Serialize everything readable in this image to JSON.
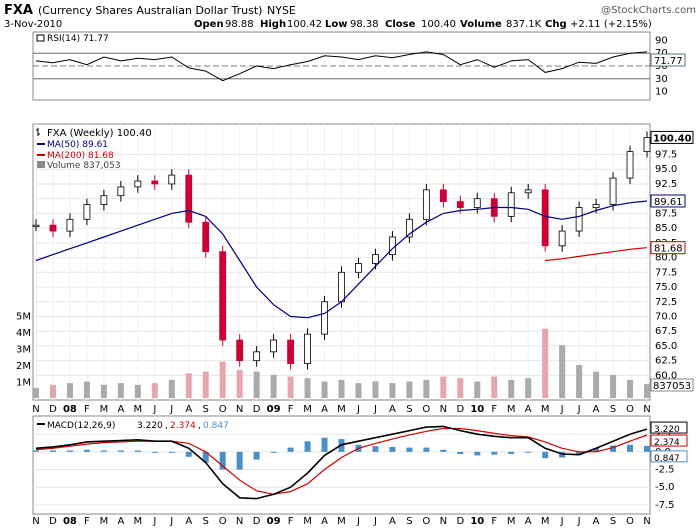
{
  "header": {
    "symbol": "FXA",
    "name": "(Currency Shares Australian Dollar Trust)",
    "exchange": "NYSE",
    "watermark": "@StockCharts.com",
    "date": "3-Nov-2010",
    "open_label": "Open",
    "open": "98.88",
    "high_label": "High",
    "high": "100.42",
    "low_label": "Low",
    "low": "98.38",
    "close_label": "Close",
    "close": "100.40",
    "volume_label": "Volume",
    "volume": "837.1K",
    "chg_label": "Chg",
    "chg": "+2.11 (+2.15%)"
  },
  "colors": {
    "up": "#000000",
    "down": "#cc0033",
    "ma50": "#000080",
    "ma200": "#cc0000",
    "vol_up": "#aaaaaa",
    "vol_down": "#e7a5ae",
    "rsi_fill_high": "#5a7a5a",
    "rsi_fill_low": "#7a5a5a",
    "macd": "#000000",
    "signal": "#cc0000",
    "hist": "#4a90c8"
  },
  "chart_data": [
    {
      "type": "line",
      "panel": "rsi",
      "legend": "RSI(14) 71.77",
      "current_label": "71.77",
      "ylim": [
        0,
        100
      ],
      "ticks": [
        "90",
        "70",
        "50",
        "30",
        "10"
      ],
      "reference_lines": [
        70,
        50,
        30
      ],
      "x": [
        "2007-11",
        "2007-12",
        "2008-01",
        "2008-02",
        "2008-03",
        "2008-04",
        "2008-05",
        "2008-06",
        "2008-07",
        "2008-08",
        "2008-09",
        "2008-10",
        "2008-11",
        "2008-12",
        "2009-01",
        "2009-02",
        "2009-03",
        "2009-04",
        "2009-05",
        "2009-06",
        "2009-07",
        "2009-08",
        "2009-09",
        "2009-10",
        "2009-11",
        "2009-12",
        "2010-01",
        "2010-02",
        "2010-03",
        "2010-04",
        "2010-05",
        "2010-06",
        "2010-07",
        "2010-08",
        "2010-09",
        "2010-10",
        "2010-11"
      ],
      "values": [
        58,
        55,
        60,
        52,
        64,
        58,
        62,
        60,
        64,
        47,
        42,
        27,
        38,
        50,
        46,
        52,
        57,
        66,
        64,
        60,
        66,
        63,
        68,
        72,
        68,
        52,
        60,
        48,
        58,
        60,
        40,
        46,
        56,
        54,
        64,
        70,
        72
      ]
    },
    {
      "type": "bar",
      "panel": "price",
      "subtype": "ohlc",
      "legend_title": "FXA (Weekly) 100.40",
      "legend_ma50": "MA(50) 89.61",
      "legend_ma200": "MA(200) 81.68",
      "legend_volume": "Volume 837,053",
      "current_label": "100.40",
      "ma50_label": "89.61",
      "ma200_label": "81.68",
      "ylim": [
        56.5,
        102
      ],
      "y_ticks": [
        "97.5",
        "95.0",
        "92.5",
        "90.0",
        "87.5",
        "85.0",
        "82.5",
        "80.0",
        "77.5",
        "75.0",
        "72.5",
        "70.0",
        "67.5",
        "65.0",
        "62.5",
        "60.0"
      ],
      "x": [
        "2007-11",
        "2007-12",
        "2008-01",
        "2008-02",
        "2008-03",
        "2008-04",
        "2008-05",
        "2008-06",
        "2008-07",
        "2008-08",
        "2008-09",
        "2008-10",
        "2008-11",
        "2008-12",
        "2009-01",
        "2009-02",
        "2009-03",
        "2009-04",
        "2009-05",
        "2009-06",
        "2009-07",
        "2009-08",
        "2009-09",
        "2009-10",
        "2009-11",
        "2009-12",
        "2010-01",
        "2010-02",
        "2010-03",
        "2010-04",
        "2010-05",
        "2010-06",
        "2010-07",
        "2010-08",
        "2010-09",
        "2010-10",
        "2010-11"
      ],
      "close": [
        85.5,
        84.5,
        86.5,
        89.0,
        90.5,
        92.0,
        93.0,
        92.5,
        94.0,
        86.0,
        81.0,
        66.0,
        62.5,
        64.0,
        66.0,
        62.0,
        67.0,
        72.5,
        77.5,
        79.0,
        80.5,
        83.5,
        86.5,
        91.5,
        89.5,
        88.5,
        90.0,
        87.0,
        91.0,
        91.5,
        82.0,
        84.5,
        88.5,
        89.0,
        93.5,
        98.0,
        100.4
      ],
      "ma50": [
        79.5,
        80.5,
        81.5,
        82.5,
        83.5,
        84.5,
        85.5,
        86.5,
        87.5,
        88.0,
        87.0,
        84.0,
        79.5,
        75.0,
        72.0,
        70.0,
        69.8,
        70.5,
        72.5,
        75.5,
        78.5,
        81.5,
        84.0,
        86.0,
        87.5,
        88.0,
        88.2,
        88.5,
        88.5,
        88.2,
        87.0,
        86.5,
        87.0,
        88.0,
        88.8,
        89.3,
        89.61
      ],
      "ma200_x": [
        "2010-05",
        "2010-06",
        "2010-07",
        "2010-08",
        "2010-09",
        "2010-10",
        "2010-11"
      ],
      "ma200": [
        79.5,
        79.8,
        80.2,
        80.6,
        81.0,
        81.4,
        81.68
      ],
      "volume_axis_labels": [
        "5M",
        "4M",
        "3M",
        "2M",
        "1M"
      ],
      "volume_current_label": "837053",
      "volume_millions": [
        0.6,
        0.8,
        0.9,
        1.0,
        0.8,
        0.9,
        0.8,
        0.9,
        1.1,
        1.5,
        1.6,
        2.2,
        1.7,
        1.6,
        1.4,
        1.3,
        1.2,
        1.0,
        1.1,
        0.9,
        1.0,
        0.9,
        1.0,
        1.1,
        1.3,
        1.2,
        1.0,
        1.3,
        1.1,
        1.2,
        4.2,
        3.2,
        2.0,
        1.6,
        1.4,
        1.1,
        0.84
      ]
    },
    {
      "type": "line",
      "panel": "macd",
      "legend_label": "MACD(12,26,9)",
      "macd_legend": "3.220",
      "signal_legend": "2.374",
      "hist_legend": "0.847",
      "current_macd": "3.220",
      "current_signal": "2.374",
      "current_hist": "0.847",
      "ylim": [
        -8.5,
        4.5
      ],
      "y_ticks": [
        "2.5",
        "0.0",
        "-2.5",
        "-5.0",
        "-7.5"
      ],
      "x": [
        "2007-11",
        "2007-12",
        "2008-01",
        "2008-02",
        "2008-03",
        "2008-04",
        "2008-05",
        "2008-06",
        "2008-07",
        "2008-08",
        "2008-09",
        "2008-10",
        "2008-11",
        "2008-12",
        "2009-01",
        "2009-02",
        "2009-03",
        "2009-04",
        "2009-05",
        "2009-06",
        "2009-07",
        "2009-08",
        "2009-09",
        "2009-10",
        "2009-11",
        "2009-12",
        "2010-01",
        "2010-02",
        "2010-03",
        "2010-04",
        "2010-05",
        "2010-06",
        "2010-07",
        "2010-08",
        "2010-09",
        "2010-10",
        "2010-11"
      ],
      "series": [
        {
          "name": "MACD",
          "values": [
            0.5,
            0.7,
            1.0,
            1.4,
            1.5,
            1.6,
            1.7,
            1.5,
            1.5,
            0.5,
            -1.5,
            -4.5,
            -6.5,
            -6.6,
            -6.0,
            -5.0,
            -3.0,
            -0.5,
            1.0,
            1.5,
            2.0,
            2.5,
            3.0,
            3.5,
            3.6,
            3.0,
            2.5,
            2.2,
            2.0,
            2.0,
            0.5,
            -0.3,
            -0.4,
            0.5,
            1.5,
            2.5,
            3.22
          ]
        },
        {
          "name": "Signal",
          "values": [
            0.3,
            0.5,
            0.8,
            1.1,
            1.3,
            1.4,
            1.5,
            1.5,
            1.5,
            1.2,
            0.0,
            -2.0,
            -4.0,
            -5.5,
            -6.0,
            -5.6,
            -4.5,
            -2.5,
            -0.8,
            0.5,
            1.2,
            1.8,
            2.4,
            2.9,
            3.3,
            3.3,
            3.0,
            2.6,
            2.3,
            2.1,
            1.4,
            0.5,
            0.0,
            0.0,
            0.6,
            1.5,
            2.374
          ]
        },
        {
          "name": "Histogram",
          "values": [
            0.2,
            0.2,
            0.2,
            0.3,
            0.2,
            0.2,
            0.2,
            0.0,
            0.0,
            -0.7,
            -1.5,
            -2.5,
            -2.5,
            -1.1,
            0.0,
            0.6,
            1.5,
            2.0,
            1.8,
            1.0,
            0.8,
            0.7,
            0.6,
            0.6,
            0.3,
            -0.3,
            -0.5,
            -0.4,
            -0.3,
            -0.1,
            -0.9,
            -0.8,
            -0.4,
            0.5,
            0.9,
            1.0,
            0.847
          ]
        }
      ]
    }
  ],
  "x_axis": {
    "labels": [
      {
        "text": "N",
        "b": false,
        "m": "2007-11"
      },
      {
        "text": "D",
        "b": false,
        "m": "2007-12"
      },
      {
        "text": "08",
        "b": true,
        "m": "2008-01"
      },
      {
        "text": "F",
        "b": false,
        "m": "2008-02"
      },
      {
        "text": "M",
        "b": false,
        "m": "2008-03"
      },
      {
        "text": "A",
        "b": false,
        "m": "2008-04"
      },
      {
        "text": "M",
        "b": false,
        "m": "2008-05"
      },
      {
        "text": "J",
        "b": false,
        "m": "2008-06"
      },
      {
        "text": "J",
        "b": false,
        "m": "2008-07"
      },
      {
        "text": "A",
        "b": false,
        "m": "2008-08"
      },
      {
        "text": "S",
        "b": false,
        "m": "2008-09"
      },
      {
        "text": "O",
        "b": false,
        "m": "2008-10"
      },
      {
        "text": "N",
        "b": false,
        "m": "2008-11"
      },
      {
        "text": "D",
        "b": false,
        "m": "2008-12"
      },
      {
        "text": "09",
        "b": true,
        "m": "2009-01"
      },
      {
        "text": "F",
        "b": false,
        "m": "2009-02"
      },
      {
        "text": "M",
        "b": false,
        "m": "2009-03"
      },
      {
        "text": "A",
        "b": false,
        "m": "2009-04"
      },
      {
        "text": "M",
        "b": false,
        "m": "2009-05"
      },
      {
        "text": "J",
        "b": false,
        "m": "2009-06"
      },
      {
        "text": "J",
        "b": false,
        "m": "2009-07"
      },
      {
        "text": "A",
        "b": false,
        "m": "2009-08"
      },
      {
        "text": "S",
        "b": false,
        "m": "2009-09"
      },
      {
        "text": "O",
        "b": false,
        "m": "2009-10"
      },
      {
        "text": "N",
        "b": false,
        "m": "2009-11"
      },
      {
        "text": "D",
        "b": false,
        "m": "2009-12"
      },
      {
        "text": "10",
        "b": true,
        "m": "2010-01"
      },
      {
        "text": "F",
        "b": false,
        "m": "2010-02"
      },
      {
        "text": "M",
        "b": false,
        "m": "2010-03"
      },
      {
        "text": "A",
        "b": false,
        "m": "2010-04"
      },
      {
        "text": "M",
        "b": false,
        "m": "2010-05"
      },
      {
        "text": "J",
        "b": false,
        "m": "2010-06"
      },
      {
        "text": "J",
        "b": false,
        "m": "2010-07"
      },
      {
        "text": "A",
        "b": false,
        "m": "2010-08"
      },
      {
        "text": "S",
        "b": false,
        "m": "2010-09"
      },
      {
        "text": "O",
        "b": false,
        "m": "2010-10"
      },
      {
        "text": "N",
        "b": false,
        "m": "2010-11"
      }
    ]
  }
}
